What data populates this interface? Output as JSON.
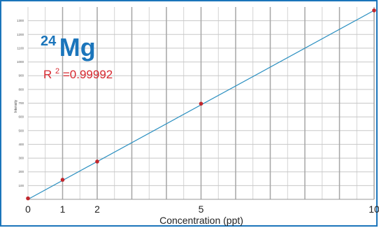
{
  "chart_data": {
    "type": "scatter",
    "isotope": {
      "mass_number": "24",
      "element": "Mg"
    },
    "r_squared": {
      "label": "R",
      "exponent": "2",
      "value": "=0.99992"
    },
    "xlabel": "Concentration (ppt)",
    "ylabel": "Intensity",
    "xlim": [
      0,
      10
    ],
    "ylim": [
      0,
      1400
    ],
    "x_ticks": [
      0,
      1,
      2,
      5,
      10
    ],
    "y_ticks": [
      100,
      200,
      300,
      400,
      500,
      600,
      700,
      800,
      900,
      1000,
      1100,
      1200,
      1300
    ],
    "x_gridlines": [
      0,
      0.5,
      1,
      1.5,
      2,
      2.5,
      3,
      3.5,
      4,
      4.5,
      5,
      5.5,
      6,
      6.5,
      7,
      7.5,
      8,
      8.5,
      9,
      9.5,
      10
    ],
    "x_major_gridlines": [
      1,
      2,
      3,
      4,
      5,
      6,
      7,
      8,
      9,
      10
    ],
    "grid": true,
    "series": [
      {
        "points": [
          {
            "x": 0,
            "y": 7
          },
          {
            "x": 1,
            "y": 142
          },
          {
            "x": 2,
            "y": 275
          },
          {
            "x": 5,
            "y": 696
          },
          {
            "x": 10,
            "y": 1375
          }
        ],
        "fit_line": {
          "x": [
            0,
            10
          ],
          "y": [
            0,
            1375
          ]
        }
      }
    ],
    "colors": {
      "title": "#1b75bb",
      "r_squared": "#d7282f",
      "fit_line": "#2a8fc0",
      "points": "#c1272d",
      "frame": "#1b75bb",
      "grid": "#c8c8c8",
      "grid_major": "#a6a6a6"
    }
  }
}
